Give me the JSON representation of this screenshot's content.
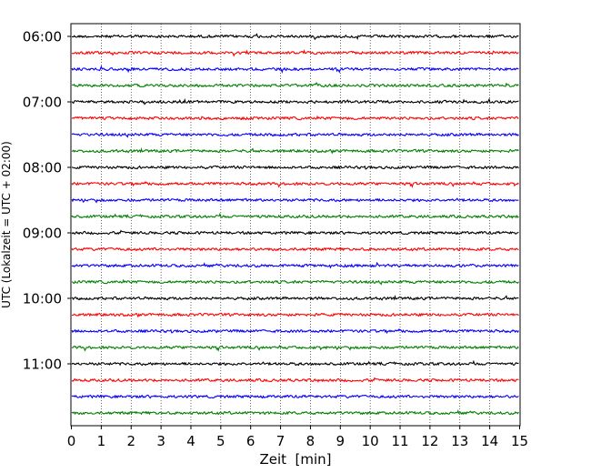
{
  "chart_data": {
    "type": "line",
    "title": "",
    "xlabel": "Zeit  [min]",
    "ylabel": "UTC (Lokalzeit = UTC + 02:00)",
    "xlim": [
      0,
      15
    ],
    "x_ticks": [
      "0",
      "1",
      "2",
      "3",
      "4",
      "5",
      "6",
      "7",
      "8",
      "9",
      "10",
      "11",
      "12",
      "13",
      "14",
      "15"
    ],
    "y_ticks": [
      "06:00",
      "07:00",
      "08:00",
      "09:00",
      "10:00",
      "11:00"
    ],
    "y_order": "reversed",
    "grid": "vertical dotted lines at each minute",
    "trace_interval_min": 15,
    "trace_colors": [
      "#000000",
      "#ff0000",
      "#0000ff",
      "#008000"
    ],
    "traces": [
      {
        "start": "06:00"
      },
      {
        "start": "06:15"
      },
      {
        "start": "06:30"
      },
      {
        "start": "06:45"
      },
      {
        "start": "07:00"
      },
      {
        "start": "07:15"
      },
      {
        "start": "07:30"
      },
      {
        "start": "07:45"
      },
      {
        "start": "08:00"
      },
      {
        "start": "08:15"
      },
      {
        "start": "08:30"
      },
      {
        "start": "08:45"
      },
      {
        "start": "09:00"
      },
      {
        "start": "09:15"
      },
      {
        "start": "09:30"
      },
      {
        "start": "09:45"
      },
      {
        "start": "10:00"
      },
      {
        "start": "10:15"
      },
      {
        "start": "10:30"
      },
      {
        "start": "10:45"
      },
      {
        "start": "11:00"
      },
      {
        "start": "11:15"
      },
      {
        "start": "11:30"
      },
      {
        "start": "11:45"
      }
    ]
  }
}
